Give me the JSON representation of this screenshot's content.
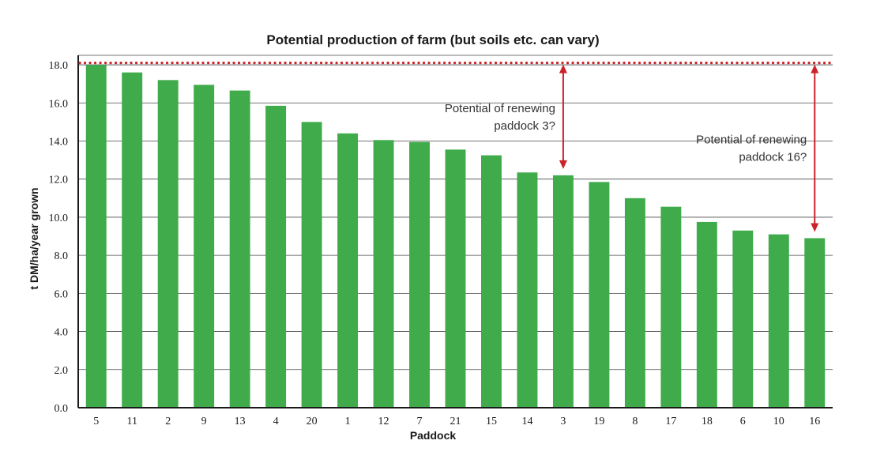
{
  "chart_data": {
    "type": "bar",
    "title": "Potential production of farm (but soils etc. can vary)",
    "xlabel": "Paddock",
    "ylabel": "t DM/ha/year grown",
    "categories": [
      "5",
      "11",
      "2",
      "9",
      "13",
      "4",
      "20",
      "1",
      "12",
      "7",
      "21",
      "15",
      "14",
      "3",
      "19",
      "8",
      "17",
      "18",
      "6",
      "10",
      "16"
    ],
    "values": [
      18.0,
      17.6,
      17.2,
      16.95,
      16.65,
      15.85,
      15.0,
      14.4,
      14.05,
      13.95,
      13.55,
      13.25,
      12.35,
      12.2,
      11.85,
      11.0,
      10.55,
      9.75,
      9.3,
      9.1,
      8.9
    ],
    "ylim": [
      0,
      18.5
    ],
    "yticks": [
      "0.0",
      "2.0",
      "4.0",
      "6.0",
      "8.0",
      "10.0",
      "12.0",
      "14.0",
      "16.0",
      "18.0"
    ],
    "grid": true,
    "bar_color": "#40ab4a",
    "reference_line": {
      "value": 18.1,
      "color": "#cc2229",
      "style": "dotted"
    },
    "annotations": [
      {
        "lines": [
          "Potential of renewing",
          "paddock 3?"
        ],
        "category": "3",
        "color": "#cc2229"
      },
      {
        "lines": [
          "Potential of renewing",
          "paddock 16?"
        ],
        "category": "16",
        "color": "#cc2229"
      }
    ]
  }
}
